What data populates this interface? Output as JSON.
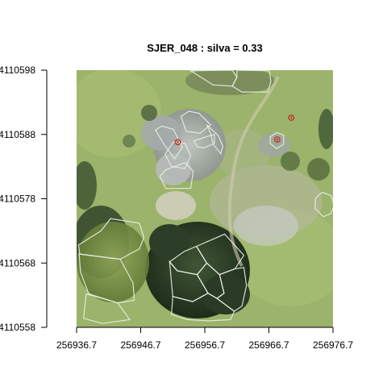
{
  "chart_data": {
    "type": "image-with-polygons",
    "title": "SJER_048 : silva = 0.33",
    "xlim": [
      256936.7,
      256976.7
    ],
    "ylim": [
      4110558,
      4110598
    ],
    "x_ticks": [
      "256936.7",
      "256946.7",
      "256956.7",
      "256966.7",
      "256976.7"
    ],
    "y_ticks": [
      "4110558",
      "4110568",
      "4110578",
      "4110588",
      "4110598"
    ],
    "treetops": [
      {
        "x": 256952.5,
        "y": 4110586.8
      },
      {
        "x": 256968.0,
        "y": 4110587.2
      },
      {
        "x": 256970.2,
        "y": 4110590.6
      }
    ],
    "crowns": [
      [
        [
          256954.5,
          4110597.9
        ],
        [
          256958.0,
          4110595.7
        ],
        [
          256961.0,
          4110595.5
        ],
        [
          256961.7,
          4110596.9
        ],
        [
          256961.0,
          4110598.0
        ]
      ],
      [
        [
          256961.7,
          4110596.9
        ],
        [
          256961.0,
          4110595.5
        ],
        [
          256962.5,
          4110594.6
        ],
        [
          256966.5,
          4110594.6
        ],
        [
          256967.0,
          4110596.2
        ],
        [
          256966.8,
          4110597.9
        ],
        [
          256961.7,
          4110598.0
        ]
      ],
      [
        [
          256949.0,
          4110588.7
        ],
        [
          256950.5,
          4110586.2
        ],
        [
          256952.0,
          4110584.2
        ],
        [
          256953.2,
          4110586.0
        ],
        [
          256951.8,
          4110588.8
        ],
        [
          256950.0,
          4110589.3
        ]
      ],
      [
        [
          256953.0,
          4110590.8
        ],
        [
          256954.2,
          4110591.6
        ],
        [
          256955.8,
          4110591.3
        ],
        [
          256957.6,
          4110589.5
        ],
        [
          256956.0,
          4110588.2
        ],
        [
          256953.8,
          4110588.5
        ]
      ],
      [
        [
          256955.0,
          4110587.0
        ],
        [
          256956.8,
          4110587.6
        ],
        [
          256958.2,
          4110588.0
        ],
        [
          256958.2,
          4110586.6
        ],
        [
          256956.5,
          4110585.9
        ],
        [
          256955.5,
          4110586.1
        ]
      ],
      [
        [
          256957.0,
          4110589.5
        ],
        [
          256958.8,
          4110587.8
        ],
        [
          256959.5,
          4110586.2
        ],
        [
          256959.2,
          4110585.0
        ],
        [
          256958.0,
          4110586.5
        ],
        [
          256957.6,
          4110588.2
        ]
      ],
      [
        [
          256950.5,
          4110584.9
        ],
        [
          256951.5,
          4110583.0
        ],
        [
          256953.6,
          4110582.7
        ],
        [
          256954.5,
          4110584.7
        ],
        [
          256953.6,
          4110586.6
        ],
        [
          256951.8,
          4110586.8
        ]
      ],
      [
        [
          256949.7,
          4110581.5
        ],
        [
          256950.6,
          4110579.6
        ],
        [
          256954.5,
          4110579.6
        ],
        [
          256954.9,
          4110582.3
        ],
        [
          256953.6,
          4110583.6
        ],
        [
          256950.6,
          4110582.5
        ]
      ],
      [
        [
          256966.9,
          4110587.6
        ],
        [
          256967.9,
          4110588.3
        ],
        [
          256969.0,
          4110587.9
        ],
        [
          256969.0,
          4110586.5
        ],
        [
          256967.9,
          4110585.8
        ],
        [
          256966.9,
          4110586.6
        ]
      ],
      [
        [
          256975.0,
          4110579.0
        ],
        [
          256976.4,
          4110578.5
        ],
        [
          256976.9,
          4110577.0
        ],
        [
          256976.4,
          4110575.7
        ],
        [
          256975.2,
          4110575.2
        ],
        [
          256973.9,
          4110576.5
        ],
        [
          256974.0,
          4110578.1
        ]
      ],
      [
        [
          256937.0,
          4110570.8
        ],
        [
          256940.5,
          4110573.0
        ],
        [
          256942.0,
          4110574.9
        ],
        [
          256946.5,
          4110574.2
        ],
        [
          256947.2,
          4110572.0
        ],
        [
          256946.5,
          4110570.2
        ],
        [
          256943.5,
          4110568.6
        ],
        [
          256937.2,
          4110569.4
        ]
      ],
      [
        [
          256937.1,
          4110569.4
        ],
        [
          256943.5,
          4110568.6
        ],
        [
          256945.5,
          4110564.9
        ],
        [
          256945.7,
          4110562.2
        ],
        [
          256943.1,
          4110561.8
        ],
        [
          256938.6,
          4110563.2
        ],
        [
          256937.3,
          4110566.6
        ]
      ],
      [
        [
          256938.2,
          4110563.2
        ],
        [
          256943.1,
          4110561.8
        ],
        [
          256945.0,
          4110559.2
        ],
        [
          256940.7,
          4110558.6
        ],
        [
          256937.8,
          4110559.4
        ]
      ],
      [
        [
          256955.4,
          4110570.6
        ],
        [
          256959.8,
          4110572.5
        ],
        [
          256962.8,
          4110569.2
        ],
        [
          256961.4,
          4110567.1
        ],
        [
          256959.0,
          4110566.2
        ],
        [
          256957.0,
          4110568.0
        ]
      ],
      [
        [
          256951.2,
          4110568.2
        ],
        [
          256953.5,
          4110569.8
        ],
        [
          256955.4,
          4110570.6
        ],
        [
          256957.0,
          4110568.0
        ],
        [
          256955.5,
          4110566.2
        ],
        [
          256952.4,
          4110566.8
        ]
      ],
      [
        [
          256951.2,
          4110568.2
        ],
        [
          256952.4,
          4110566.8
        ],
        [
          256955.5,
          4110566.2
        ],
        [
          256957.2,
          4110563.3
        ],
        [
          256954.8,
          4110562.0
        ],
        [
          256951.7,
          4110562.8
        ]
      ],
      [
        [
          256957.2,
          4110563.3
        ],
        [
          256955.5,
          4110566.2
        ],
        [
          256957.0,
          4110568.0
        ],
        [
          256959.0,
          4110566.2
        ],
        [
          256959.7,
          4110563.3
        ],
        [
          256958.6,
          4110562.5
        ]
      ],
      [
        [
          256958.6,
          4110562.5
        ],
        [
          256959.7,
          4110563.3
        ],
        [
          256959.0,
          4110566.2
        ],
        [
          256961.4,
          4110567.1
        ],
        [
          256962.8,
          4110567.3
        ],
        [
          256963.2,
          4110564.5
        ],
        [
          256962.5,
          4110561.3
        ],
        [
          256961.3,
          4110560.5
        ]
      ],
      [
        [
          256951.7,
          4110562.8
        ],
        [
          256954.8,
          4110562.0
        ],
        [
          256957.2,
          4110563.3
        ],
        [
          256958.6,
          4110562.5
        ],
        [
          256961.3,
          4110560.5
        ],
        [
          256960.7,
          4110559.2
        ],
        [
          256957.2,
          4110559.0
        ],
        [
          256954.0,
          4110559.2
        ],
        [
          256951.5,
          4110560.0
        ]
      ]
    ]
  }
}
